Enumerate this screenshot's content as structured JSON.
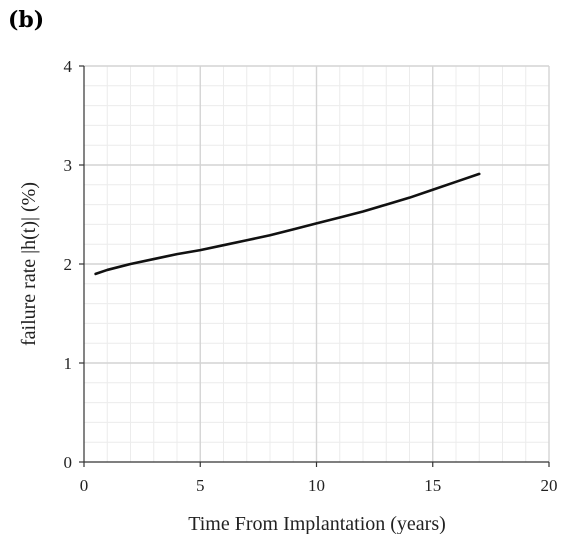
{
  "panel_label": "(b)",
  "chart_data": {
    "type": "line",
    "title": "",
    "xlabel": "Time From Implantation (years)",
    "ylabel": "failure rate |h(t)| (%)",
    "xlim": [
      0,
      20
    ],
    "ylim": [
      0,
      4
    ],
    "xticks": [
      0,
      5,
      10,
      15,
      20
    ],
    "yticks": [
      0,
      1,
      2,
      3,
      4
    ],
    "grid": true,
    "minor_grid": true,
    "series": [
      {
        "color": "#111111",
        "x": [
          0.5,
          1,
          2,
          3,
          4,
          5,
          6,
          7,
          8,
          9,
          10,
          11,
          12,
          13,
          14,
          15,
          16,
          17
        ],
        "y": [
          1.9,
          1.94,
          2.0,
          2.05,
          2.1,
          2.14,
          2.19,
          2.24,
          2.29,
          2.35,
          2.41,
          2.47,
          2.53,
          2.6,
          2.67,
          2.75,
          2.83,
          2.91
        ]
      }
    ]
  }
}
